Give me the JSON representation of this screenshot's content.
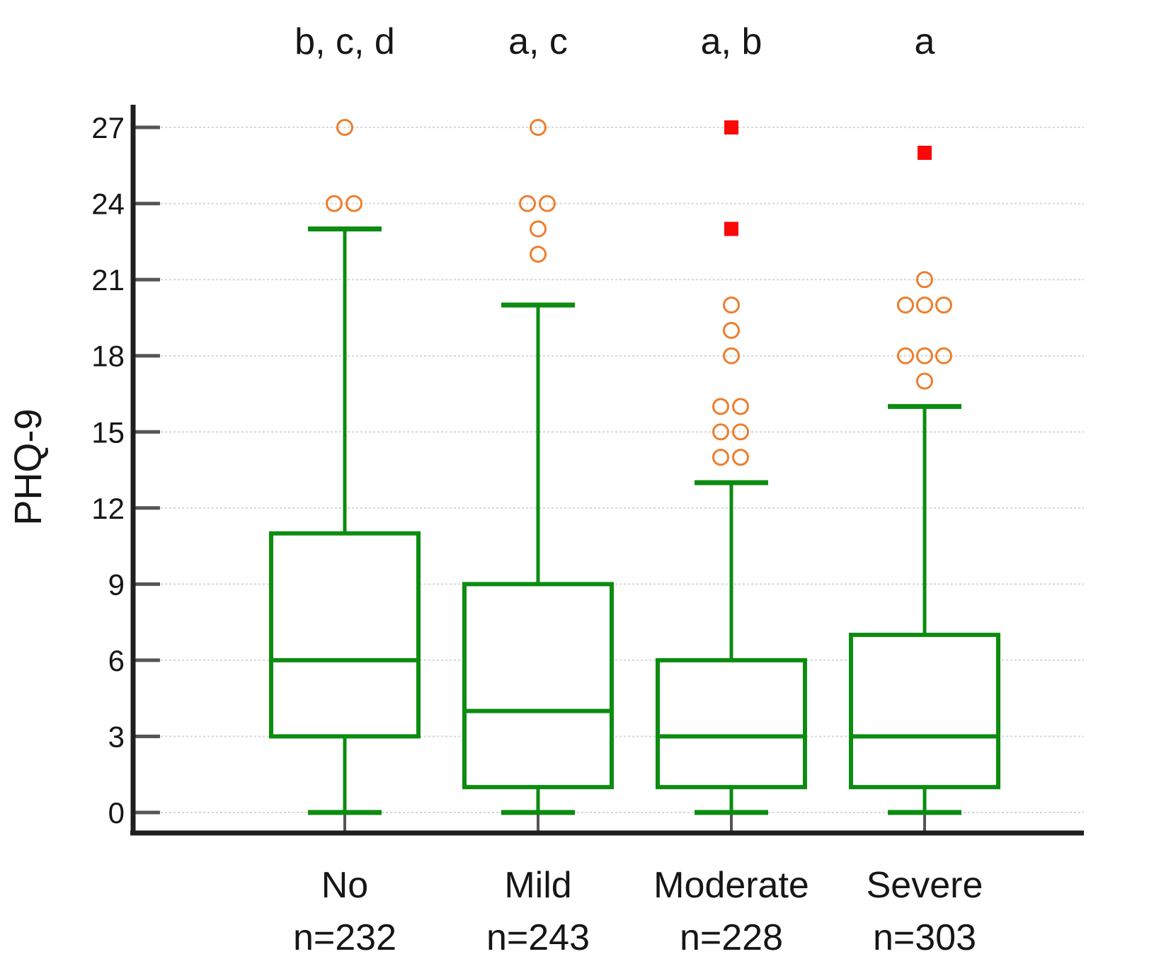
{
  "chart_data": {
    "type": "boxplot",
    "title": "",
    "ylabel": "PHQ-9",
    "xlabel": "",
    "ylim": [
      0,
      27
    ],
    "yticks": [
      0,
      3,
      6,
      9,
      12,
      15,
      18,
      21,
      24,
      27
    ],
    "grid": true,
    "legend": "none",
    "categories": [
      "No",
      "Mild",
      "Moderate",
      "Severe"
    ],
    "series": [
      {
        "name": "No",
        "count_label": "n=232",
        "annotation": "b, c, d",
        "whisker_low": 0,
        "q1": 3,
        "median": 6,
        "q3": 11,
        "whisker_high": 23,
        "outliers_mild": [
          [
            24,
            -15
          ],
          [
            24,
            13
          ],
          [
            27,
            0
          ]
        ],
        "outliers_extreme": []
      },
      {
        "name": "Mild",
        "count_label": "n=243",
        "annotation": "a, c",
        "whisker_low": 0,
        "q1": 1,
        "median": 4,
        "q3": 9,
        "whisker_high": 20,
        "outliers_mild": [
          [
            22,
            0
          ],
          [
            23,
            0
          ],
          [
            24,
            -15
          ],
          [
            24,
            13
          ],
          [
            27,
            0
          ]
        ],
        "outliers_extreme": []
      },
      {
        "name": "Moderate",
        "count_label": "n=228",
        "annotation": "a, b",
        "whisker_low": 0,
        "q1": 1,
        "median": 3,
        "q3": 6,
        "whisker_high": 13,
        "outliers_mild": [
          [
            14,
            -15
          ],
          [
            14,
            13
          ],
          [
            15,
            -15
          ],
          [
            15,
            13
          ],
          [
            16,
            -15
          ],
          [
            16,
            13
          ],
          [
            18,
            0
          ],
          [
            19,
            0
          ],
          [
            20,
            0
          ]
        ],
        "outliers_extreme": [
          [
            23,
            0
          ],
          [
            27,
            0
          ]
        ]
      },
      {
        "name": "Severe",
        "count_label": "n=303",
        "annotation": "a",
        "whisker_low": 0,
        "q1": 1,
        "median": 3,
        "q3": 7,
        "whisker_high": 16,
        "outliers_mild": [
          [
            17,
            0
          ],
          [
            18,
            -27
          ],
          [
            18,
            0
          ],
          [
            18,
            27
          ],
          [
            20,
            -27
          ],
          [
            20,
            0
          ],
          [
            20,
            27
          ],
          [
            21,
            0
          ]
        ],
        "outliers_extreme": [
          [
            26,
            0
          ]
        ]
      }
    ],
    "marker_legend": {
      "circle": "mild outlier",
      "square": "extreme outlier"
    },
    "colors": {
      "box": "#0c8c10",
      "outlier_circle": "#ee7d2c",
      "outlier_square": "#fb0808",
      "gridline": "#d6d6d6",
      "axis": "#1f1f1f",
      "tick": "#555555",
      "text": "#161616",
      "background": "#ffffff"
    }
  }
}
